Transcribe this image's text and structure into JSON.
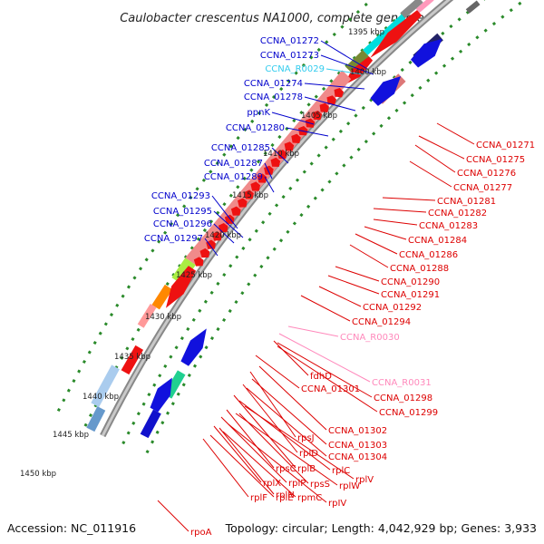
{
  "title": "Caulobacter crescentus NA1000, complete genome",
  "accession": "Accession: NC_011916",
  "topology": "Topology: circular; Length: 4,042,929 bp; Genes: 3,933",
  "colors": {
    "forward_label": "#0000cc",
    "reverse_label": "#dd0000",
    "rna_label": "#33ccee",
    "rrna_label": "#ff88bb",
    "backbone": "#999999",
    "tick": "#2a8a2a"
  },
  "kbp_ticks": [
    "1395 kbp",
    "1400 kbp",
    "1405 kbp",
    "1410 kbp",
    "1415 kbp",
    "1420 kbp",
    "1425 kbp",
    "1430 kbp",
    "1435 kbp",
    "1440 kbp",
    "1445 kbp",
    "1450 kbp"
  ],
  "left_labels": [
    {
      "text": "CCNA_01272",
      "kind": "forward"
    },
    {
      "text": "CCNA_01273",
      "kind": "forward"
    },
    {
      "text": "CCNA_R0029",
      "kind": "rna"
    },
    {
      "text": "CCNA_01274",
      "kind": "forward"
    },
    {
      "text": "CCNA_01278",
      "kind": "forward"
    },
    {
      "text": "ppnK",
      "kind": "forward"
    },
    {
      "text": "CCNA_01280",
      "kind": "forward"
    },
    {
      "text": "CCNA_01285",
      "kind": "forward"
    },
    {
      "text": "CCNA_01287",
      "kind": "forward"
    },
    {
      "text": "CCNA_01289",
      "kind": "forward"
    },
    {
      "text": "CCNA_01293",
      "kind": "forward"
    },
    {
      "text": "CCNA_01295",
      "kind": "forward"
    },
    {
      "text": "CCNA_01296",
      "kind": "forward"
    },
    {
      "text": "CCNA_01297",
      "kind": "forward"
    }
  ],
  "right_labels": [
    {
      "text": "CCNA_01271",
      "kind": "reverse"
    },
    {
      "text": "CCNA_01275",
      "kind": "reverse"
    },
    {
      "text": "CCNA_01276",
      "kind": "reverse"
    },
    {
      "text": "CCNA_01277",
      "kind": "reverse"
    },
    {
      "text": "CCNA_01281",
      "kind": "reverse"
    },
    {
      "text": "CCNA_01282",
      "kind": "reverse"
    },
    {
      "text": "CCNA_01283",
      "kind": "reverse"
    },
    {
      "text": "CCNA_01284",
      "kind": "reverse"
    },
    {
      "text": "CCNA_01286",
      "kind": "reverse"
    },
    {
      "text": "CCNA_01288",
      "kind": "reverse"
    },
    {
      "text": "CCNA_01290",
      "kind": "reverse"
    },
    {
      "text": "CCNA_01291",
      "kind": "reverse"
    },
    {
      "text": "CCNA_01292",
      "kind": "reverse"
    },
    {
      "text": "CCNA_01294",
      "kind": "reverse"
    },
    {
      "text": "CCNA_R0030",
      "kind": "rrna"
    },
    {
      "text": "fdhD",
      "kind": "reverse"
    },
    {
      "text": "CCNA_R0031",
      "kind": "rrna"
    },
    {
      "text": "CCNA_01301",
      "kind": "reverse"
    },
    {
      "text": "CCNA_01298",
      "kind": "reverse"
    },
    {
      "text": "CCNA_01299",
      "kind": "reverse"
    },
    {
      "text": "CCNA_01302",
      "kind": "reverse"
    },
    {
      "text": "rpsJ",
      "kind": "reverse"
    },
    {
      "text": "CCNA_01303",
      "kind": "reverse"
    },
    {
      "text": "rplD",
      "kind": "reverse"
    },
    {
      "text": "CCNA_01304",
      "kind": "reverse"
    },
    {
      "text": "rplB",
      "kind": "reverse"
    },
    {
      "text": "rplC",
      "kind": "reverse"
    },
    {
      "text": "rpsC",
      "kind": "reverse"
    },
    {
      "text": "rplV",
      "kind": "reverse"
    },
    {
      "text": "rplP",
      "kind": "reverse"
    },
    {
      "text": "rpsS",
      "kind": "reverse"
    },
    {
      "text": "rplW",
      "kind": "reverse"
    },
    {
      "text": "rplX",
      "kind": "reverse"
    },
    {
      "text": "rplN",
      "kind": "reverse"
    },
    {
      "text": "rplF",
      "kind": "reverse"
    },
    {
      "text": "rplE",
      "kind": "reverse"
    },
    {
      "text": "rpmC",
      "kind": "reverse"
    },
    {
      "text": "rpIV",
      "kind": "reverse"
    },
    {
      "text": "rpoA",
      "kind": "reverse"
    }
  ]
}
